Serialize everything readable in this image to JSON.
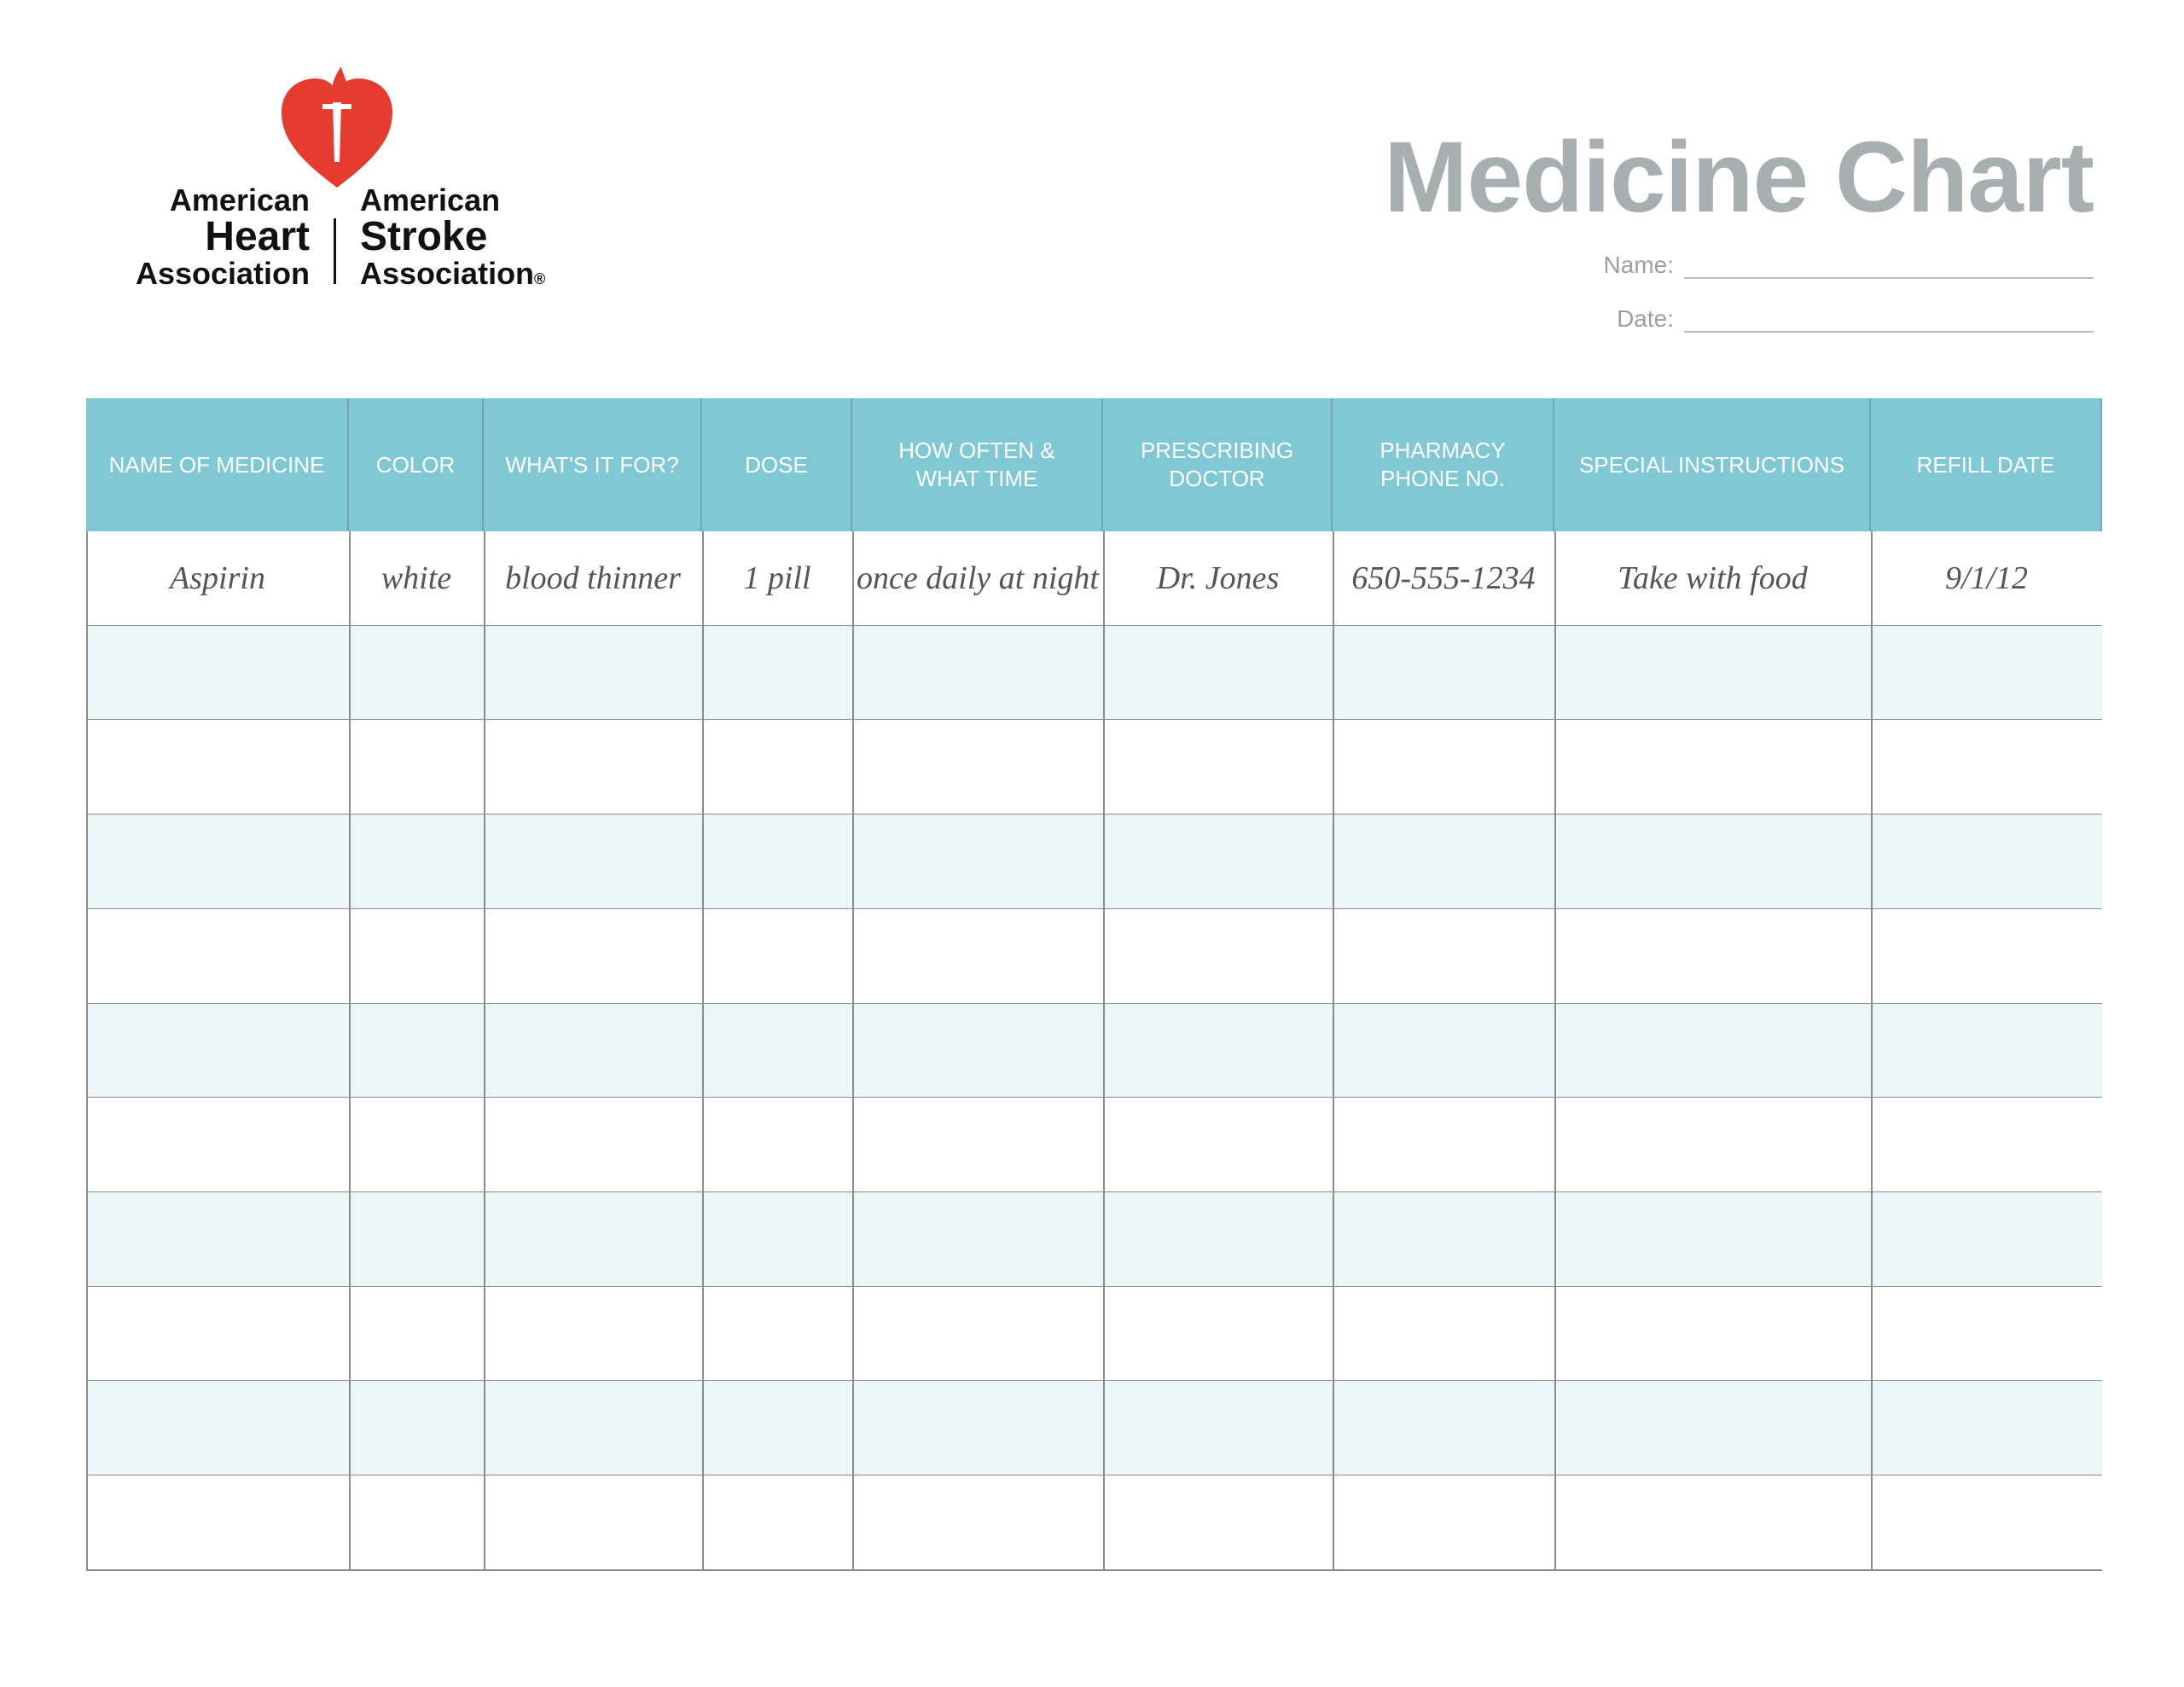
{
  "logo": {
    "left": [
      "American",
      "Heart",
      "Association"
    ],
    "right": [
      "American",
      "Stroke",
      "Association"
    ],
    "mark": "®"
  },
  "header": {
    "title": "Medicine Chart",
    "fields": [
      "Name:",
      "Date:"
    ]
  },
  "table": {
    "columns": [
      [
        "NAME OF MEDICINE"
      ],
      [
        "COLOR"
      ],
      [
        "WHAT'S IT FOR?"
      ],
      [
        "DOSE"
      ],
      [
        "HOW OFTEN &",
        "WHAT TIME"
      ],
      [
        "PRESCRIBING",
        "DOCTOR"
      ],
      [
        "PHARMACY",
        "PHONE NO."
      ],
      [
        "SPECIAL INSTRUCTIONS"
      ],
      [
        "REFILL DATE"
      ]
    ],
    "rows": [
      [
        "Aspirin",
        "white",
        "blood thinner",
        "1 pill",
        "once daily at night",
        "Dr. Jones",
        "650-555-1234",
        "Take with food",
        "9/1/12"
      ]
    ]
  }
}
